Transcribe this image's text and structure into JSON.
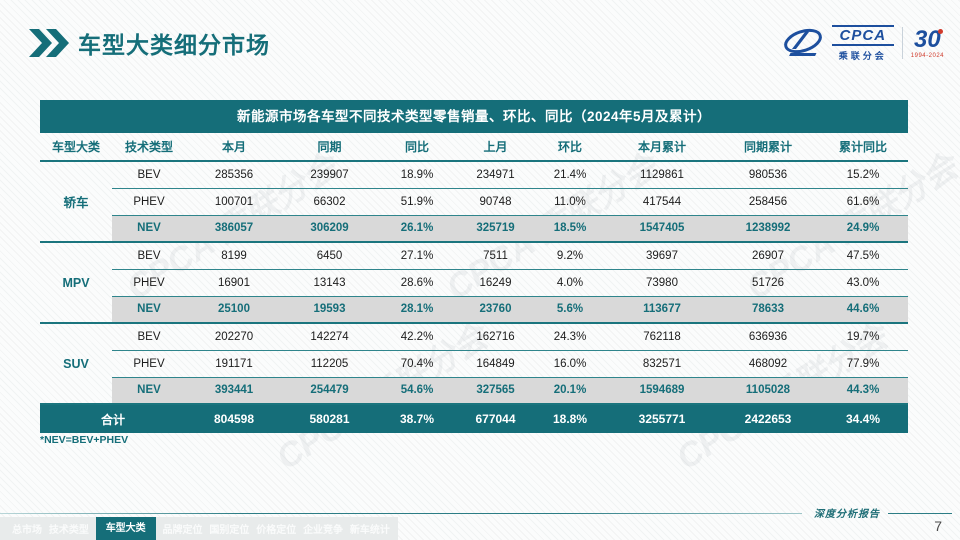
{
  "page": {
    "title": "车型大类细分市场",
    "page_number": "7",
    "footer_label": "深度分析报告",
    "footnote": "*NEV=BEV+PHEV"
  },
  "logo": {
    "name": "CPCA",
    "subtitle": "乘联分会",
    "anniversary_number": "30",
    "anniversary_years": "1994-2024"
  },
  "watermark": "CPCA 乘联分会",
  "table": {
    "title": "新能源市场各车型不同技术类型零售销量、环比、同比（2024年5月及累计）",
    "columns": [
      "车型大类",
      "技术类型",
      "本月",
      "同期",
      "同比",
      "上月",
      "环比",
      "本月累计",
      "同期累计",
      "累计同比"
    ],
    "groups": [
      {
        "label": "轿车",
        "rows": [
          {
            "tech": "BEV",
            "highlight": false,
            "values": [
              "285356",
              "239907",
              "18.9%",
              "234971",
              "21.4%",
              "1129861",
              "980536",
              "15.2%"
            ]
          },
          {
            "tech": "PHEV",
            "highlight": false,
            "values": [
              "100701",
              "66302",
              "51.9%",
              "90748",
              "11.0%",
              "417544",
              "258456",
              "61.6%"
            ]
          },
          {
            "tech": "NEV",
            "highlight": true,
            "values": [
              "386057",
              "306209",
              "26.1%",
              "325719",
              "18.5%",
              "1547405",
              "1238992",
              "24.9%"
            ]
          }
        ]
      },
      {
        "label": "MPV",
        "rows": [
          {
            "tech": "BEV",
            "highlight": false,
            "values": [
              "8199",
              "6450",
              "27.1%",
              "7511",
              "9.2%",
              "39697",
              "26907",
              "47.5%"
            ]
          },
          {
            "tech": "PHEV",
            "highlight": false,
            "values": [
              "16901",
              "13143",
              "28.6%",
              "16249",
              "4.0%",
              "73980",
              "51726",
              "43.0%"
            ]
          },
          {
            "tech": "NEV",
            "highlight": true,
            "values": [
              "25100",
              "19593",
              "28.1%",
              "23760",
              "5.6%",
              "113677",
              "78633",
              "44.6%"
            ]
          }
        ]
      },
      {
        "label": "SUV",
        "rows": [
          {
            "tech": "BEV",
            "highlight": false,
            "values": [
              "202270",
              "142274",
              "42.2%",
              "162716",
              "24.3%",
              "762118",
              "636936",
              "19.7%"
            ]
          },
          {
            "tech": "PHEV",
            "highlight": false,
            "values": [
              "191171",
              "112205",
              "70.4%",
              "164849",
              "16.0%",
              "832571",
              "468092",
              "77.9%"
            ]
          },
          {
            "tech": "NEV",
            "highlight": true,
            "values": [
              "393441",
              "254479",
              "54.6%",
              "327565",
              "20.1%",
              "1594689",
              "1105028",
              "44.3%"
            ]
          }
        ]
      }
    ],
    "total": {
      "label": "合计",
      "values": [
        "804598",
        "580281",
        "38.7%",
        "677044",
        "18.8%",
        "3255771",
        "2422653",
        "34.4%"
      ]
    }
  },
  "nav": {
    "items": [
      {
        "label": "总市场",
        "active": false
      },
      {
        "label": "技术类型",
        "active": false
      },
      {
        "label": "车型大类",
        "active": true
      },
      {
        "label": "品牌定位",
        "active": false
      },
      {
        "label": "国别定位",
        "active": false
      },
      {
        "label": "价格定位",
        "active": false
      },
      {
        "label": "企业竞争",
        "active": false
      },
      {
        "label": "新车统计",
        "active": false
      }
    ]
  },
  "colors": {
    "teal": "#156e79",
    "nev_row_bg": "#d9d9d9",
    "logo_blue": "#1d4f9e",
    "logo_red": "#d03a2b"
  }
}
